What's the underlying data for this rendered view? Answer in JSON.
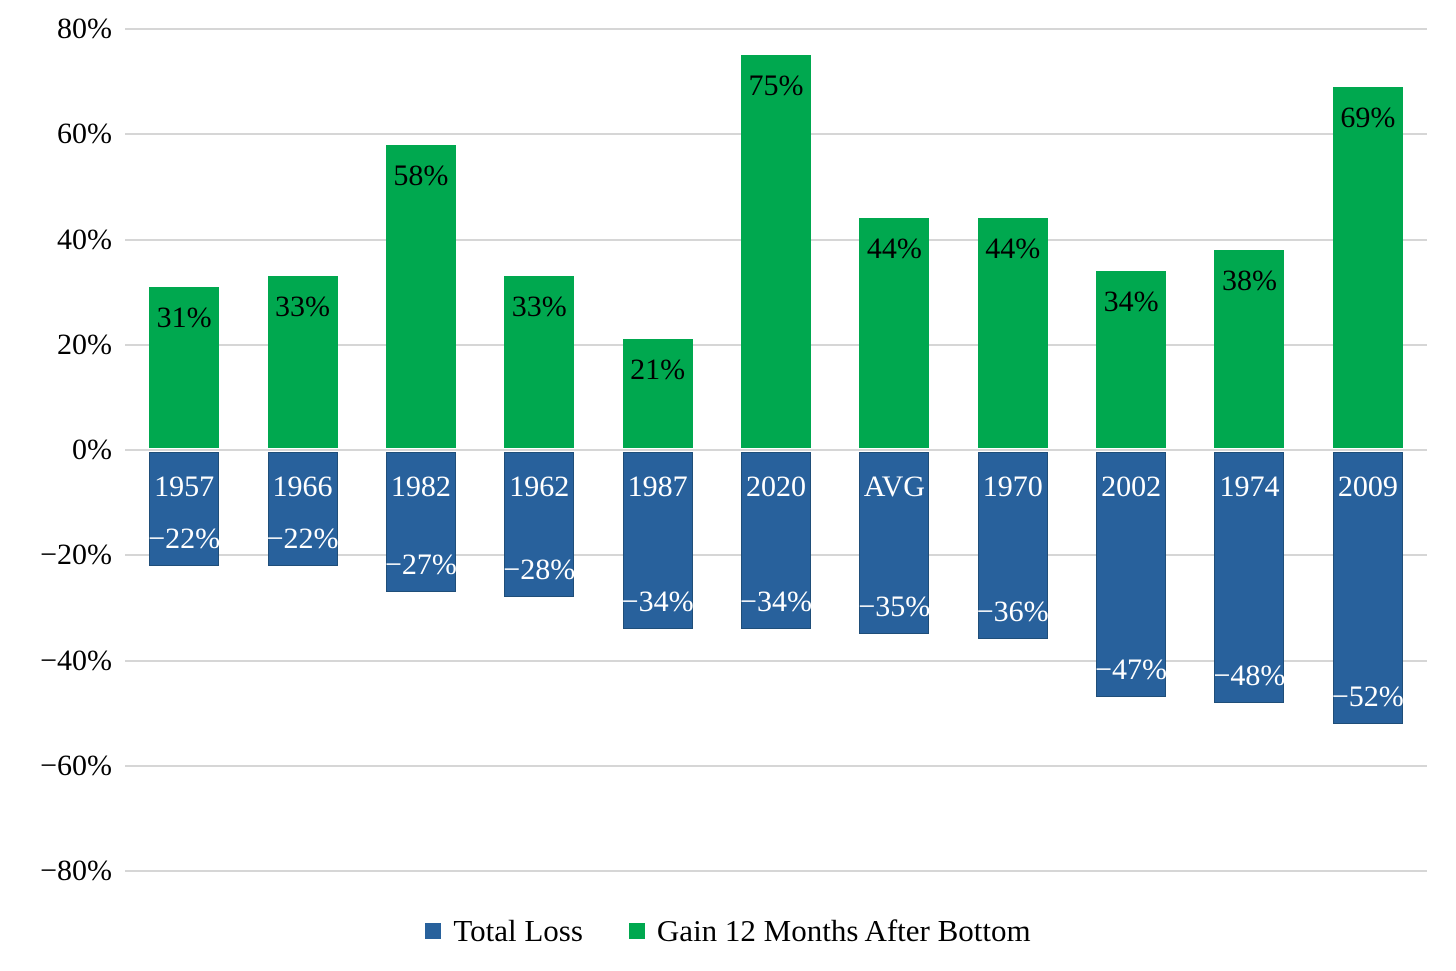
{
  "chart_data": {
    "type": "bar",
    "title": "",
    "xlabel": "",
    "ylabel": "",
    "categories": [
      "1957",
      "1966",
      "1982",
      "1962",
      "1987",
      "2020",
      "AVG",
      "1970",
      "2002",
      "1974",
      "2009"
    ],
    "series": [
      {
        "name": "Total Loss",
        "color": "#28619c",
        "border_color": "#1f4e79",
        "values": [
          -22,
          -22,
          -27,
          -28,
          -34,
          -34,
          -35,
          -36,
          -47,
          -48,
          -52
        ],
        "labels": [
          "−22%",
          "−22%",
          "−27%",
          "−28%",
          "−34%",
          "−34%",
          "−35%",
          "−36%",
          "−47%",
          "−48%",
          "−52%"
        ]
      },
      {
        "name": "Gain 12 Months After Bottom",
        "color": "#00a84f",
        "values": [
          31,
          33,
          58,
          33,
          21,
          75,
          44,
          44,
          34,
          38,
          69
        ],
        "labels": [
          "31%",
          "33%",
          "58%",
          "33%",
          "21%",
          "75%",
          "44%",
          "44%",
          "34%",
          "38%",
          "69%"
        ]
      }
    ],
    "ylim": [
      -80,
      80
    ],
    "ytick_step": 20,
    "ytick_labels": [
      "80%",
      "60%",
      "40%",
      "20%",
      "0%",
      "−20%",
      "−40%",
      "−60%",
      "−80%"
    ],
    "grid": true,
    "gridline_color": "#d6d6d6",
    "legend_position": "bottom",
    "label_text_colors": {
      "gain": "#000000",
      "year": "#ffffff",
      "loss": "#ffffff"
    }
  }
}
